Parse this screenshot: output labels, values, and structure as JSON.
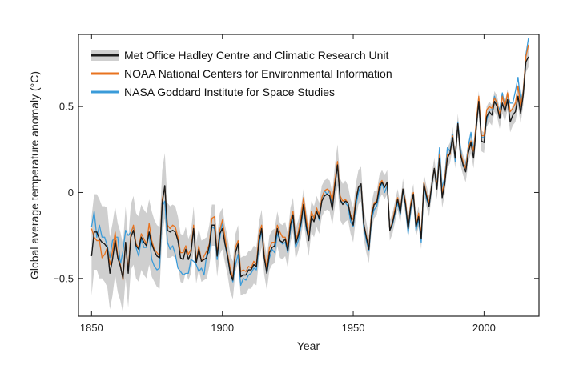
{
  "chart_data": {
    "type": "line",
    "xlabel": "Year",
    "ylabel": "Global average temperature anomaly (°C)",
    "xlim": [
      1845,
      2021
    ],
    "ylim": [
      -0.72,
      0.92
    ],
    "xticks": [
      1850,
      1900,
      1950,
      2000
    ],
    "xtick_labels": [
      "1850",
      "1900",
      "1950",
      "2000"
    ],
    "yticks": [
      -0.5,
      0,
      0.5
    ],
    "ytick_labels": [
      "−0.5",
      "0",
      "0.5"
    ],
    "grid": false,
    "legend_position": "top-left",
    "colors": {
      "hadley": "#1a1a1a",
      "noaa": "#e8731f",
      "nasa": "#3a9bd9",
      "uncertainty": "#cfcfcf"
    },
    "x_start": 1850,
    "hadley": [
      -0.37,
      -0.23,
      -0.23,
      -0.27,
      -0.29,
      -0.3,
      -0.32,
      -0.47,
      -0.39,
      -0.28,
      -0.38,
      -0.43,
      -0.5,
      -0.29,
      -0.47,
      -0.26,
      -0.22,
      -0.31,
      -0.33,
      -0.26,
      -0.29,
      -0.31,
      -0.23,
      -0.3,
      -0.34,
      -0.37,
      -0.38,
      -0.06,
      0.04,
      -0.22,
      -0.23,
      -0.22,
      -0.23,
      -0.28,
      -0.38,
      -0.39,
      -0.33,
      -0.39,
      -0.35,
      -0.21,
      -0.41,
      -0.33,
      -0.4,
      -0.39,
      -0.38,
      -0.31,
      -0.19,
      -0.19,
      -0.37,
      -0.24,
      -0.21,
      -0.3,
      -0.37,
      -0.47,
      -0.51,
      -0.35,
      -0.3,
      -0.49,
      -0.48,
      -0.48,
      -0.45,
      -0.45,
      -0.42,
      -0.43,
      -0.28,
      -0.21,
      -0.38,
      -0.47,
      -0.35,
      -0.32,
      -0.31,
      -0.21,
      -0.28,
      -0.29,
      -0.27,
      -0.34,
      -0.19,
      -0.13,
      -0.3,
      -0.25,
      -0.18,
      -0.07,
      -0.19,
      -0.28,
      -0.14,
      -0.17,
      -0.11,
      -0.15,
      -0.05,
      -0.02,
      -0.01,
      -0.02,
      -0.1,
      0.04,
      0.16,
      -0.04,
      -0.07,
      -0.05,
      -0.06,
      -0.14,
      -0.19,
      -0.05,
      0.03,
      0.05,
      -0.18,
      -0.26,
      -0.33,
      -0.14,
      -0.07,
      -0.06,
      0.03,
      0.06,
      0.03,
      0.06,
      -0.22,
      -0.18,
      -0.11,
      -0.04,
      -0.12,
      0.02,
      -0.07,
      -0.21,
      -0.08,
      -0.01,
      -0.2,
      -0.14,
      -0.27,
      0.05,
      -0.02,
      -0.08,
      0.04,
      0.14,
      0.02,
      0.2,
      -0.03,
      0.05,
      0.2,
      0.23,
      0.32,
      0.2,
      0.4,
      0.22,
      0.16,
      0.12,
      0.23,
      0.29,
      0.2,
      0.37,
      0.53,
      0.3,
      0.29,
      0.44,
      0.47,
      0.45,
      0.53,
      0.5,
      0.43,
      0.52,
      0.47,
      0.54,
      0.41,
      0.45,
      0.47,
      0.56,
      0.46,
      0.57,
      0.76,
      0.79
    ],
    "noaa": [
      -0.21,
      -0.26,
      -0.28,
      -0.28,
      -0.38,
      -0.36,
      -0.32,
      -0.42,
      -0.34,
      -0.23,
      -0.37,
      -0.42,
      -0.51,
      -0.29,
      -0.45,
      -0.24,
      -0.19,
      -0.3,
      -0.32,
      -0.24,
      -0.27,
      -0.3,
      -0.18,
      -0.28,
      -0.33,
      -0.35,
      -0.37,
      -0.04,
      0.03,
      -0.19,
      -0.21,
      -0.19,
      -0.2,
      -0.26,
      -0.35,
      -0.35,
      -0.31,
      -0.36,
      -0.33,
      -0.19,
      -0.4,
      -0.31,
      -0.4,
      -0.37,
      -0.34,
      -0.3,
      -0.15,
      -0.14,
      -0.36,
      -0.22,
      -0.16,
      -0.26,
      -0.36,
      -0.44,
      -0.5,
      -0.32,
      -0.28,
      -0.46,
      -0.45,
      -0.46,
      -0.43,
      -0.44,
      -0.4,
      -0.42,
      -0.24,
      -0.19,
      -0.36,
      -0.44,
      -0.32,
      -0.29,
      -0.29,
      -0.19,
      -0.23,
      -0.26,
      -0.26,
      -0.31,
      -0.16,
      -0.11,
      -0.28,
      -0.23,
      -0.14,
      -0.03,
      -0.15,
      -0.25,
      -0.11,
      -0.15,
      -0.09,
      -0.13,
      -0.03,
      0.01,
      0.02,
      0.01,
      -0.05,
      0.07,
      0.18,
      -0.02,
      -0.05,
      -0.04,
      -0.06,
      -0.13,
      -0.16,
      -0.03,
      0.03,
      0.05,
      -0.18,
      -0.25,
      -0.32,
      -0.12,
      -0.06,
      -0.05,
      0.05,
      0.07,
      0.03,
      0.06,
      -0.22,
      -0.17,
      -0.09,
      -0.03,
      -0.1,
      0.02,
      -0.05,
      -0.21,
      -0.06,
      0.0,
      -0.19,
      -0.12,
      -0.25,
      0.06,
      -0.01,
      -0.06,
      0.04,
      0.14,
      0.04,
      0.22,
      -0.01,
      0.08,
      0.22,
      0.22,
      0.33,
      0.2,
      0.4,
      0.23,
      0.18,
      0.14,
      0.26,
      0.3,
      0.24,
      0.4,
      0.56,
      0.33,
      0.33,
      0.48,
      0.5,
      0.49,
      0.55,
      0.52,
      0.45,
      0.56,
      0.5,
      0.58,
      0.47,
      0.49,
      0.52,
      0.62,
      0.5,
      0.59,
      0.79,
      0.86
    ],
    "nasa": [
      -0.2,
      -0.11,
      -0.26,
      -0.19,
      -0.26,
      -0.26,
      -0.31,
      -0.38,
      -0.28,
      -0.26,
      -0.26,
      -0.42,
      -0.34,
      -0.22,
      -0.25,
      -0.23,
      -0.2,
      -0.32,
      -0.37,
      -0.27,
      -0.32,
      -0.32,
      -0.24,
      -0.39,
      -0.43,
      -0.45,
      -0.44,
      -0.08,
      -0.05,
      -0.29,
      -0.33,
      -0.31,
      -0.36,
      -0.44,
      -0.46,
      -0.48,
      -0.47,
      -0.47,
      -0.39,
      -0.4,
      -0.42,
      -0.46,
      -0.44,
      -0.48,
      -0.36,
      -0.35,
      -0.2,
      -0.21,
      -0.39,
      -0.27,
      -0.17,
      -0.3,
      -0.38,
      -0.47,
      -0.52,
      -0.42,
      -0.36,
      -0.54,
      -0.5,
      -0.51,
      -0.48,
      -0.47,
      -0.44,
      -0.45,
      -0.31,
      -0.22,
      -0.38,
      -0.47,
      -0.38,
      -0.33,
      -0.35,
      -0.24,
      -0.28,
      -0.3,
      -0.29,
      -0.35,
      -0.22,
      -0.15,
      -0.32,
      -0.28,
      -0.2,
      -0.08,
      -0.21,
      -0.27,
      -0.14,
      -0.14,
      -0.1,
      -0.16,
      -0.04,
      0.01,
      -0.01,
      0.01,
      -0.07,
      0.04,
      0.17,
      -0.05,
      -0.06,
      -0.06,
      -0.08,
      -0.17,
      -0.2,
      -0.08,
      0.0,
      0.05,
      -0.2,
      -0.28,
      -0.34,
      -0.16,
      -0.1,
      -0.08,
      0.0,
      0.06,
      0.0,
      0.04,
      -0.22,
      -0.19,
      -0.12,
      -0.06,
      -0.13,
      0.01,
      -0.08,
      -0.24,
      -0.1,
      -0.01,
      -0.22,
      -0.16,
      -0.29,
      0.05,
      -0.04,
      -0.08,
      0.03,
      0.14,
      0.05,
      0.26,
      0.03,
      0.09,
      0.26,
      0.24,
      0.34,
      0.18,
      0.41,
      0.26,
      0.15,
      0.16,
      0.27,
      0.35,
      0.25,
      0.4,
      0.55,
      0.32,
      0.32,
      0.42,
      0.48,
      0.48,
      0.56,
      0.51,
      0.48,
      0.58,
      0.5,
      0.57,
      0.52,
      0.52,
      0.59,
      0.67,
      0.53,
      0.59,
      0.8,
      0.9
    ],
    "uncertainty_lower": [
      -0.6,
      -0.45,
      -0.45,
      -0.5,
      -0.5,
      -0.52,
      -0.55,
      -0.68,
      -0.6,
      -0.48,
      -0.58,
      -0.63,
      -0.7,
      -0.5,
      -0.67,
      -0.45,
      -0.42,
      -0.5,
      -0.52,
      -0.45,
      -0.48,
      -0.5,
      -0.42,
      -0.49,
      -0.52,
      -0.55,
      -0.56,
      -0.25,
      -0.15,
      -0.38,
      -0.38,
      -0.37,
      -0.38,
      -0.42,
      -0.52,
      -0.53,
      -0.46,
      -0.51,
      -0.47,
      -0.34,
      -0.53,
      -0.45,
      -0.52,
      -0.51,
      -0.5,
      -0.43,
      -0.31,
      -0.31,
      -0.49,
      -0.36,
      -0.33,
      -0.41,
      -0.48,
      -0.58,
      -0.62,
      -0.46,
      -0.41,
      -0.6,
      -0.59,
      -0.59,
      -0.56,
      -0.56,
      -0.53,
      -0.54,
      -0.39,
      -0.32,
      -0.48,
      -0.57,
      -0.45,
      -0.42,
      -0.41,
      -0.31,
      -0.38,
      -0.39,
      -0.37,
      -0.44,
      -0.29,
      -0.23,
      -0.39,
      -0.34,
      -0.27,
      -0.16,
      -0.28,
      -0.37,
      -0.23,
      -0.26,
      -0.2,
      -0.24,
      -0.14,
      -0.11,
      -0.1,
      -0.11,
      -0.19,
      -0.08,
      0.04,
      -0.16,
      -0.19,
      -0.17,
      -0.16,
      -0.24,
      -0.29,
      -0.15,
      -0.07,
      -0.05,
      -0.27,
      -0.35,
      -0.41,
      -0.22,
      -0.15,
      -0.13,
      -0.04,
      -0.01,
      -0.04,
      -0.01,
      -0.28,
      -0.24,
      -0.17,
      -0.1,
      -0.18,
      -0.04,
      -0.13,
      -0.27,
      -0.14,
      -0.07,
      -0.26,
      -0.2,
      -0.33,
      -0.01,
      -0.08,
      -0.14,
      -0.02,
      0.08,
      -0.04,
      0.14,
      -0.09,
      -0.01,
      0.14,
      0.17,
      0.26,
      0.14,
      0.34,
      0.16,
      0.1,
      0.06,
      0.17,
      0.23,
      0.14,
      0.31,
      0.47,
      0.24,
      0.23,
      0.38,
      0.41,
      0.39,
      0.47,
      0.44,
      0.37,
      0.46,
      0.41,
      0.48,
      0.35,
      0.39,
      0.41,
      0.5,
      0.4,
      0.51,
      0.7,
      0.73
    ],
    "uncertainty_upper": [
      -0.14,
      -0.01,
      -0.01,
      -0.04,
      -0.08,
      -0.08,
      -0.09,
      -0.26,
      -0.18,
      -0.08,
      -0.18,
      -0.23,
      -0.3,
      -0.08,
      -0.27,
      -0.07,
      -0.02,
      -0.12,
      -0.14,
      -0.07,
      -0.1,
      -0.12,
      -0.04,
      -0.11,
      -0.16,
      -0.19,
      -0.2,
      0.13,
      0.23,
      -0.06,
      -0.08,
      -0.07,
      -0.08,
      -0.14,
      -0.24,
      -0.25,
      -0.2,
      -0.27,
      -0.23,
      -0.08,
      -0.29,
      -0.21,
      -0.28,
      -0.27,
      -0.26,
      -0.19,
      -0.07,
      -0.07,
      -0.25,
      -0.12,
      -0.09,
      -0.19,
      -0.26,
      -0.36,
      -0.4,
      -0.24,
      -0.19,
      -0.38,
      -0.37,
      -0.37,
      -0.34,
      -0.34,
      -0.31,
      -0.32,
      -0.17,
      -0.1,
      -0.28,
      -0.37,
      -0.25,
      -0.22,
      -0.21,
      -0.11,
      -0.18,
      -0.19,
      -0.17,
      -0.24,
      -0.09,
      -0.03,
      -0.21,
      -0.16,
      -0.09,
      0.02,
      -0.1,
      -0.19,
      -0.05,
      -0.08,
      -0.02,
      -0.06,
      0.04,
      0.07,
      0.08,
      0.07,
      0.0,
      0.16,
      0.28,
      0.08,
      0.05,
      0.07,
      0.04,
      -0.04,
      -0.09,
      0.05,
      0.13,
      0.15,
      -0.09,
      -0.17,
      -0.25,
      -0.06,
      0.01,
      0.01,
      0.1,
      0.13,
      0.1,
      0.13,
      -0.16,
      -0.12,
      -0.05,
      0.02,
      -0.06,
      0.08,
      -0.01,
      -0.15,
      -0.02,
      0.05,
      -0.14,
      -0.08,
      -0.21,
      0.11,
      0.04,
      -0.02,
      0.1,
      0.2,
      0.08,
      0.26,
      0.03,
      0.11,
      0.26,
      0.29,
      0.38,
      0.26,
      0.46,
      0.28,
      0.22,
      0.18,
      0.29,
      0.35,
      0.26,
      0.43,
      0.59,
      0.36,
      0.35,
      0.5,
      0.53,
      0.51,
      0.59,
      0.56,
      0.49,
      0.58,
      0.53,
      0.6,
      0.47,
      0.51,
      0.53,
      0.62,
      0.52,
      0.63,
      0.82,
      0.85
    ],
    "series": [
      {
        "name": "Met Office Hadley Centre and Climatic Research Unit",
        "key": "hadley"
      },
      {
        "name": "NOAA National Centers for Environmental Information",
        "key": "noaa"
      },
      {
        "name": "NASA Goddard Institute for Space Studies",
        "key": "nasa"
      }
    ]
  }
}
